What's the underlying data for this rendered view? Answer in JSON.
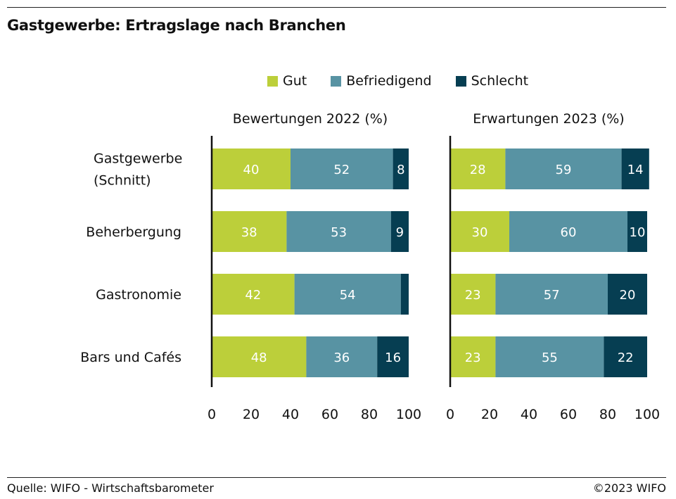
{
  "title": "Gastgewerbe: Ertragslage nach Branchen",
  "source": "Quelle: WIFO - Wirtschaftsbarometer",
  "copyright": "©2023 WIFO",
  "chart_data": {
    "type": "bar",
    "orientation": "horizontal",
    "stacked": true,
    "legend_position": "top",
    "categories": [
      [
        "Gastgewerbe",
        "(Schnitt)"
      ],
      [
        "Beherbergung"
      ],
      [
        "Gastronomie"
      ],
      [
        "Bars und Cafés"
      ]
    ],
    "series": [
      {
        "name": "Gut",
        "color": "#bccf3a"
      },
      {
        "name": "Befriedigend",
        "color": "#5893a3"
      },
      {
        "name": "Schlecht",
        "color": "#063e52"
      }
    ],
    "panels": [
      {
        "title": "Bewertungen 2022 (%)",
        "values": [
          [
            40,
            52,
            8
          ],
          [
            38,
            53,
            9
          ],
          [
            42,
            54,
            4
          ],
          [
            48,
            36,
            16
          ]
        ],
        "labels": [
          [
            "40",
            "52",
            "8"
          ],
          [
            "38",
            "53",
            "9"
          ],
          [
            "42",
            "54",
            ""
          ],
          [
            "48",
            "36",
            "16"
          ]
        ],
        "xlim": [
          0,
          100
        ],
        "ticks": [
          "0",
          "20",
          "40",
          "60",
          "80",
          "100"
        ]
      },
      {
        "title": "Erwartungen 2023 (%)",
        "values": [
          [
            28,
            59,
            14
          ],
          [
            30,
            60,
            10
          ],
          [
            23,
            57,
            20
          ],
          [
            23,
            55,
            22
          ]
        ],
        "labels": [
          [
            "28",
            "59",
            "14"
          ],
          [
            "30",
            "60",
            "10"
          ],
          [
            "23",
            "57",
            "20"
          ],
          [
            "23",
            "55",
            "22"
          ]
        ],
        "xlim": [
          0,
          100
        ],
        "ticks": [
          "0",
          "20",
          "40",
          "60",
          "80",
          "100"
        ]
      }
    ]
  }
}
